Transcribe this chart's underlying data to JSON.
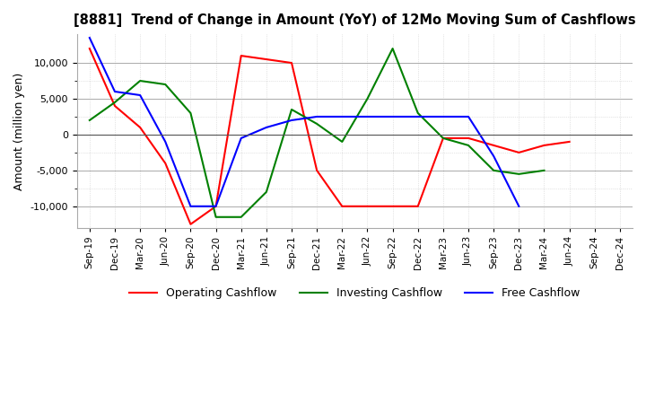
{
  "title": "[8881]  Trend of Change in Amount (YoY) of 12Mo Moving Sum of Cashflows",
  "ylabel": "Amount (million yen)",
  "x_labels": [
    "Sep-19",
    "Dec-19",
    "Mar-20",
    "Jun-20",
    "Sep-20",
    "Dec-20",
    "Mar-21",
    "Jun-21",
    "Sep-21",
    "Dec-21",
    "Mar-22",
    "Jun-22",
    "Sep-22",
    "Dec-22",
    "Mar-23",
    "Jun-23",
    "Sep-23",
    "Dec-23",
    "Mar-24",
    "Jun-24",
    "Sep-24",
    "Dec-24"
  ],
  "operating": [
    12000,
    4000,
    1000,
    -4000,
    -12500,
    -10000,
    11000,
    10500,
    10000,
    -5000,
    -10000,
    -10000,
    -10000,
    -10000,
    -500,
    -500,
    -1500,
    -2500,
    -1500,
    -1000,
    null,
    null
  ],
  "investing": [
    2000,
    4500,
    7500,
    7000,
    3000,
    -11500,
    -11500,
    -8000,
    3500,
    1500,
    -1000,
    5000,
    12000,
    3000,
    -500,
    -1500,
    -5000,
    -5500,
    -5000,
    null,
    null,
    null
  ],
  "free": [
    13500,
    6000,
    5500,
    -1000,
    -10000,
    -10000,
    -500,
    1000,
    2000,
    2500,
    2500,
    2500,
    2500,
    2500,
    2500,
    2500,
    -3000,
    -10000,
    null,
    null,
    null,
    null
  ],
  "ylim": [
    -13000,
    14000
  ],
  "yticks": [
    -10000,
    -5000,
    0,
    5000,
    10000
  ],
  "operating_color": "#ff0000",
  "investing_color": "#008000",
  "free_color": "#0000ff",
  "bg_color": "#ffffff",
  "grid_color": "#cccccc",
  "grid_color_minor": "#dddddd"
}
